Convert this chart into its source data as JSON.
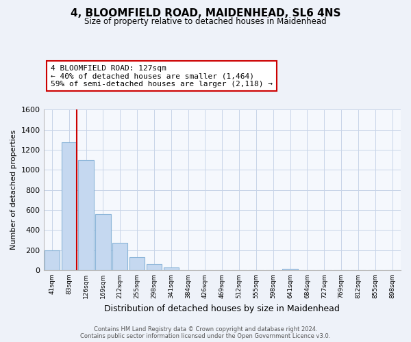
{
  "title": "4, BLOOMFIELD ROAD, MAIDENHEAD, SL6 4NS",
  "subtitle": "Size of property relative to detached houses in Maidenhead",
  "xlabel": "Distribution of detached houses by size in Maidenhead",
  "ylabel": "Number of detached properties",
  "bar_labels": [
    "41sqm",
    "83sqm",
    "126sqm",
    "169sqm",
    "212sqm",
    "255sqm",
    "298sqm",
    "341sqm",
    "384sqm",
    "426sqm",
    "469sqm",
    "512sqm",
    "555sqm",
    "598sqm",
    "641sqm",
    "684sqm",
    "727sqm",
    "769sqm",
    "812sqm",
    "855sqm",
    "898sqm"
  ],
  "bar_values": [
    200,
    1275,
    1100,
    560,
    275,
    130,
    62,
    28,
    0,
    0,
    0,
    0,
    0,
    0,
    15,
    0,
    0,
    0,
    0,
    0,
    0
  ],
  "bar_color": "#c5d8f0",
  "bar_edge_color": "#8ab4d8",
  "highlight_bar_index": 2,
  "highlight_line_color": "#cc0000",
  "ylim": [
    0,
    1600
  ],
  "yticks": [
    0,
    200,
    400,
    600,
    800,
    1000,
    1200,
    1400,
    1600
  ],
  "annotation_line1": "4 BLOOMFIELD ROAD: 127sqm",
  "annotation_line2": "← 40% of detached houses are smaller (1,464)",
  "annotation_line3": "59% of semi-detached houses are larger (2,118) →",
  "annotation_box_color": "#ffffff",
  "annotation_box_edge": "#cc0000",
  "footer_text": "Contains HM Land Registry data © Crown copyright and database right 2024.\nContains public sector information licensed under the Open Government Licence v3.0.",
  "bg_color": "#eef2f9",
  "plot_bg_color": "#f5f8fd",
  "grid_color": "#c8d4e8"
}
